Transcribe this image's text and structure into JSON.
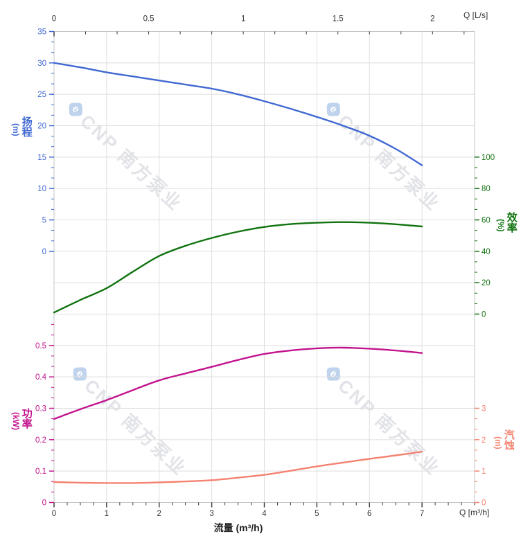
{
  "watermark": {
    "logo_text": "e",
    "text": "CNP 南方泵业"
  },
  "labels": {
    "flow_axis_title": "流量 (m³/h)",
    "top_unit_label": "Q [L/s]",
    "bottom_unit_label": "Q [m³/h]"
  },
  "colors": {
    "head": "#4169d2",
    "efficiency": "#107310",
    "power": "#c2138e",
    "npsh": "#f58270",
    "axis_text": "#333333",
    "grid": "#dedede",
    "spine": "#c4c4c4",
    "watermark_text": "#e2e3e8",
    "watermark_logo": "#bfd3ec"
  },
  "chart_data": {
    "type": "line",
    "title": "",
    "x_axis_bottom": {
      "label": "流量 (m³/h)",
      "unit_label": "Q [m³/h]",
      "tick_values": [
        0,
        1,
        2,
        3,
        4,
        5,
        6,
        7
      ],
      "tick_labels": [
        "0",
        "1",
        "2",
        "3",
        "4",
        "5",
        "6",
        "7"
      ],
      "minor_step": 0.25,
      "range": [
        0,
        8
      ],
      "color": "#333333"
    },
    "x_axis_top": {
      "unit_label": "Q [L/s]",
      "tick_values": [
        0,
        0.5,
        1,
        1.5,
        2
      ],
      "tick_labels": [
        "0",
        "0.5",
        "1",
        "1.5",
        "2"
      ],
      "minor_step": 0.166667,
      "range": [
        0,
        2.2222
      ],
      "ls_to_m3h": 3.6,
      "color": "#333333"
    },
    "y_axes": [
      {
        "id": "head",
        "title": "扬程",
        "unit": "(m)",
        "side": "left",
        "color": "#4169d2",
        "tick_values": [
          35,
          30,
          25,
          20,
          15,
          10,
          5,
          0
        ],
        "tick_labels": [
          "35",
          "30",
          "25",
          "20",
          "15",
          "10",
          "5",
          "0"
        ],
        "minor_divisions": 3,
        "row_of_zero": 7,
        "units_per_row": 5,
        "extra_minors_above": 0
      },
      {
        "id": "efficiency",
        "title": "效率",
        "unit": "(%)",
        "side": "right",
        "color": "#107310",
        "tick_values": [
          100,
          80,
          60,
          40,
          20,
          0
        ],
        "tick_labels": [
          "100",
          "80",
          "60",
          "40",
          "20",
          "0"
        ],
        "minor_divisions": 3,
        "row_of_zero": 9,
        "units_per_row": 20,
        "extra_minors_above": 0
      },
      {
        "id": "power",
        "title": "功率",
        "unit": "(kW)",
        "side": "left",
        "color": "#c2138e",
        "tick_values": [
          0.5,
          0.4,
          0.3,
          0.2,
          0.1,
          0
        ],
        "tick_labels": [
          "0.5",
          "0.4",
          "0.3",
          "0.2",
          "0.1",
          "0"
        ],
        "minor_divisions": 3,
        "row_of_zero": 15,
        "units_per_row": 0.1,
        "extra_minors_above": 2
      },
      {
        "id": "npsh",
        "title": "汽蚀",
        "unit": "(m)",
        "side": "right",
        "color": "#f58270",
        "tick_values": [
          3,
          2,
          1,
          0
        ],
        "tick_labels": [
          "3",
          "2",
          "1",
          "0"
        ],
        "minor_divisions": 3,
        "row_of_zero": 15,
        "units_per_row": 1,
        "extra_minors_above": 0
      }
    ],
    "x": [
      0,
      0.5,
      1,
      1.5,
      2,
      2.5,
      3,
      3.5,
      4,
      4.5,
      5,
      5.5,
      6,
      6.5,
      7
    ],
    "series": [
      {
        "name": "head",
        "axis": "head",
        "color": "#4169d2",
        "values": [
          30,
          29.3,
          28.5,
          27.85,
          27.2,
          26.55,
          25.9,
          25.0,
          23.9,
          22.7,
          21.4,
          20.0,
          18.4,
          16.3,
          13.7
        ]
      },
      {
        "name": "efficiency",
        "axis": "efficiency",
        "color": "#107310",
        "values": [
          1,
          9,
          16.5,
          27,
          37,
          43.5,
          48.5,
          52.5,
          55.5,
          57.3,
          58.2,
          58.6,
          58.2,
          57.2,
          55.8
        ]
      },
      {
        "name": "power",
        "axis": "power",
        "color": "#c2138e",
        "values": [
          0.266,
          0.297,
          0.326,
          0.358,
          0.389,
          0.411,
          0.432,
          0.454,
          0.473,
          0.484,
          0.491,
          0.493,
          0.49,
          0.484,
          0.476
        ]
      },
      {
        "name": "npsh",
        "axis": "npsh",
        "color": "#f58270",
        "values": [
          0.65,
          0.63,
          0.62,
          0.62,
          0.64,
          0.67,
          0.71,
          0.79,
          0.88,
          1.01,
          1.15,
          1.27,
          1.39,
          1.5,
          1.62
        ]
      }
    ],
    "grid": true,
    "legend": "none"
  }
}
